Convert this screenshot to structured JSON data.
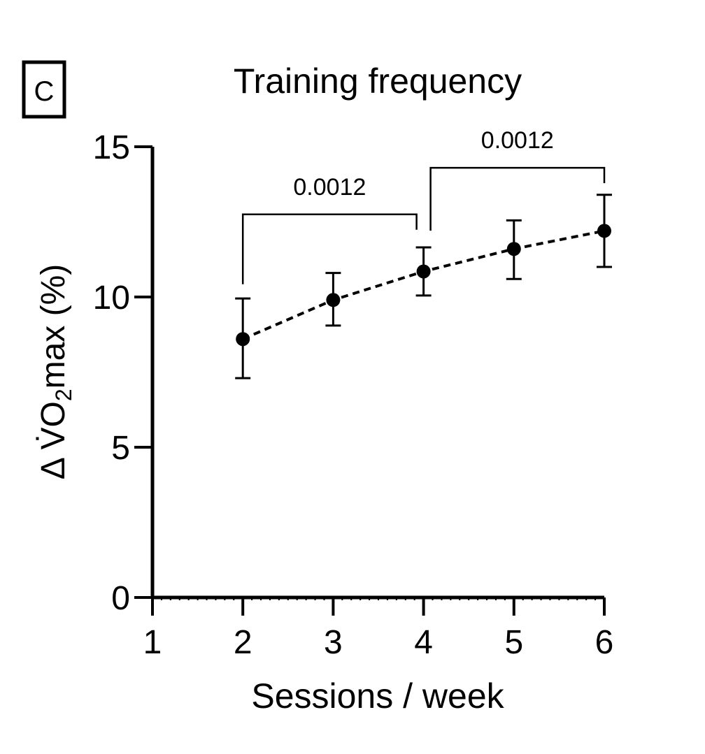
{
  "chart_data": {
    "type": "line",
    "panel_label": "C",
    "title": "Training frequency",
    "xlabel": "Sessions / week",
    "ylabel_prefix": "Δ V̇O",
    "ylabel_subscript": "2",
    "ylabel_suffix": "max (%)",
    "xlim": [
      1,
      6
    ],
    "ylim": [
      0,
      15
    ],
    "xticks": [
      "1",
      "2",
      "3",
      "4",
      "5",
      "6"
    ],
    "yticks": [
      "0",
      "5",
      "10",
      "15"
    ],
    "grid": false,
    "legend": "none",
    "line_style": "dashed",
    "series": [
      {
        "x": [
          2,
          3,
          4,
          5,
          6
        ],
        "y": [
          8.6,
          9.9,
          10.85,
          11.6,
          12.2
        ],
        "error_low": [
          7.3,
          9.05,
          10.05,
          10.6,
          11.0
        ],
        "error_high": [
          9.95,
          10.8,
          11.65,
          12.55,
          13.4
        ]
      }
    ],
    "annotations": [
      {
        "text": "0.0012",
        "x_from": 2,
        "x_to": 4,
        "bracket_y": 12.75
      },
      {
        "text": "0.0012",
        "x_from": 4,
        "x_to": 6,
        "bracket_y": 14.3
      }
    ],
    "colors": {
      "line": "#000000",
      "marker": "#000000"
    }
  }
}
